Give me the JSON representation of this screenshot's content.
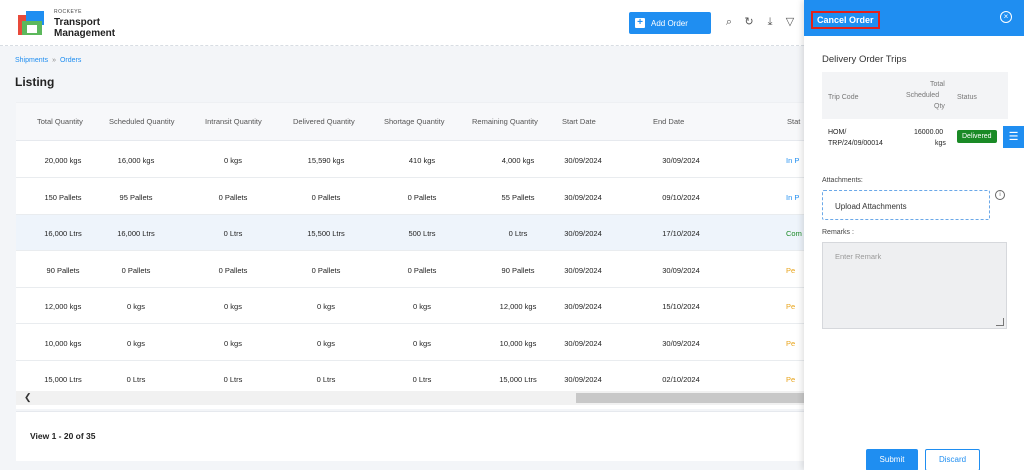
{
  "brand": {
    "top": "ROCKEYE",
    "line1": "Transport",
    "line2": "Management"
  },
  "header": {
    "add_label": "Add Order",
    "icons": [
      "search-icon",
      "refresh-icon",
      "download-icon",
      "filter-icon"
    ]
  },
  "breadcrumb": {
    "items": [
      "Shipments",
      "Orders"
    ],
    "sep": "»"
  },
  "page": {
    "title": "Listing"
  },
  "table": {
    "headers": [
      "Total Quantity",
      "Scheduled Quantity",
      "Intransit Quantity",
      "Delivered Quantity",
      "Shortage Quantity",
      "Remaining Quantity",
      "Start Date",
      "End Date",
      "Stat"
    ],
    "rows": [
      [
        "20,000 kgs",
        "16,000 kgs",
        "0 kgs",
        "15,590 kgs",
        "410 kgs",
        "4,000 kgs",
        "30/09/2024",
        "30/09/2024",
        "In P"
      ],
      [
        "150 Pallets",
        "95 Pallets",
        "0 Pallets",
        "0 Pallets",
        "0 Pallets",
        "55 Pallets",
        "30/09/2024",
        "09/10/2024",
        "In P"
      ],
      [
        "16,000 Ltrs",
        "16,000 Ltrs",
        "0 Ltrs",
        "15,500 Ltrs",
        "500 Ltrs",
        "0 Ltrs",
        "30/09/2024",
        "17/10/2024",
        "Com"
      ],
      [
        "90 Pallets",
        "0 Pallets",
        "0 Pallets",
        "0 Pallets",
        "0 Pallets",
        "90 Pallets",
        "30/09/2024",
        "30/09/2024",
        "Pe"
      ],
      [
        "12,000 kgs",
        "0 kgs",
        "0 kgs",
        "0 kgs",
        "0 kgs",
        "12,000 kgs",
        "30/09/2024",
        "15/10/2024",
        "Pe"
      ],
      [
        "10,000 kgs",
        "0 kgs",
        "0 kgs",
        "0 kgs",
        "0 kgs",
        "10,000 kgs",
        "30/09/2024",
        "30/09/2024",
        "Pe"
      ],
      [
        "15,000 Ltrs",
        "0 Ltrs",
        "0 Ltrs",
        "0 Ltrs",
        "0 Ltrs",
        "15,000 Ltrs",
        "30/09/2024",
        "02/10/2024",
        "Pe"
      ]
    ],
    "status_colors": {
      "In P": "#1f8ef1",
      "Com": "#1a8a26",
      "Pe": "#e8a317"
    }
  },
  "footer": {
    "view_text": "View 1 - 20 of 35"
  },
  "panel": {
    "title": "Cancel Order",
    "section_title": "Delivery Order Trips",
    "trip_headers": {
      "code": "Trip Code",
      "qty_1": "Total",
      "qty_2": "Scheduled",
      "qty_3": "Qty",
      "status": "Status"
    },
    "trip": {
      "code_1": "HOM/",
      "code_2": "TRP/24/09/00014",
      "qty_1": "16000.00",
      "qty_2": "kgs",
      "status": "Delivered"
    },
    "attachments_label": "Attachments:",
    "upload_label": "Upload Attachments",
    "remarks_label": "Remarks :",
    "remark_placeholder": "Enter Remark",
    "submit_label": "Submit",
    "discard_label": "Discard"
  },
  "colors": {
    "accent": "#1f8ef1",
    "delivered": "#1a8a26",
    "highlight_border": "#e3211a"
  }
}
